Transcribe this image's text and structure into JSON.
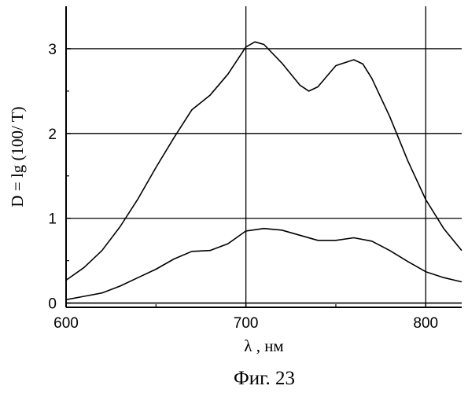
{
  "chart_data": {
    "type": "line",
    "title": "",
    "caption": "Фиг. 23",
    "xlabel": "λ , нм",
    "ylabel": "D = lg (100/ T)",
    "xlim": [
      600,
      820
    ],
    "ylim": [
      -0.05,
      3.5
    ],
    "x_ticks": [
      600,
      700,
      800
    ],
    "y_ticks": [
      0,
      1,
      2,
      3
    ],
    "grid": {
      "horizontal": [
        1,
        2,
        3
      ],
      "vertical": [
        700,
        800
      ]
    },
    "legend": "none",
    "series": [
      {
        "x": [
          600,
          610,
          620,
          630,
          640,
          650,
          660,
          670,
          680,
          690,
          700,
          705,
          710,
          720,
          730,
          735,
          740,
          750,
          760,
          765,
          770,
          780,
          790,
          800,
          810,
          820
        ],
        "y": [
          0.27,
          0.42,
          0.62,
          0.9,
          1.23,
          1.6,
          1.95,
          2.28,
          2.45,
          2.7,
          3.02,
          3.08,
          3.05,
          2.83,
          2.57,
          2.5,
          2.55,
          2.8,
          2.87,
          2.82,
          2.65,
          2.2,
          1.68,
          1.22,
          0.88,
          0.62
        ]
      },
      {
        "x": [
          600,
          610,
          620,
          630,
          640,
          650,
          660,
          670,
          680,
          690,
          700,
          710,
          720,
          730,
          740,
          750,
          760,
          770,
          780,
          790,
          800,
          810,
          820
        ],
        "y": [
          0.04,
          0.08,
          0.12,
          0.2,
          0.3,
          0.4,
          0.52,
          0.61,
          0.62,
          0.7,
          0.85,
          0.88,
          0.86,
          0.8,
          0.74,
          0.74,
          0.77,
          0.73,
          0.62,
          0.49,
          0.37,
          0.3,
          0.25
        ]
      },
      {
        "x": [
          600,
          820
        ],
        "y": [
          0.0,
          0.0
        ]
      }
    ]
  }
}
